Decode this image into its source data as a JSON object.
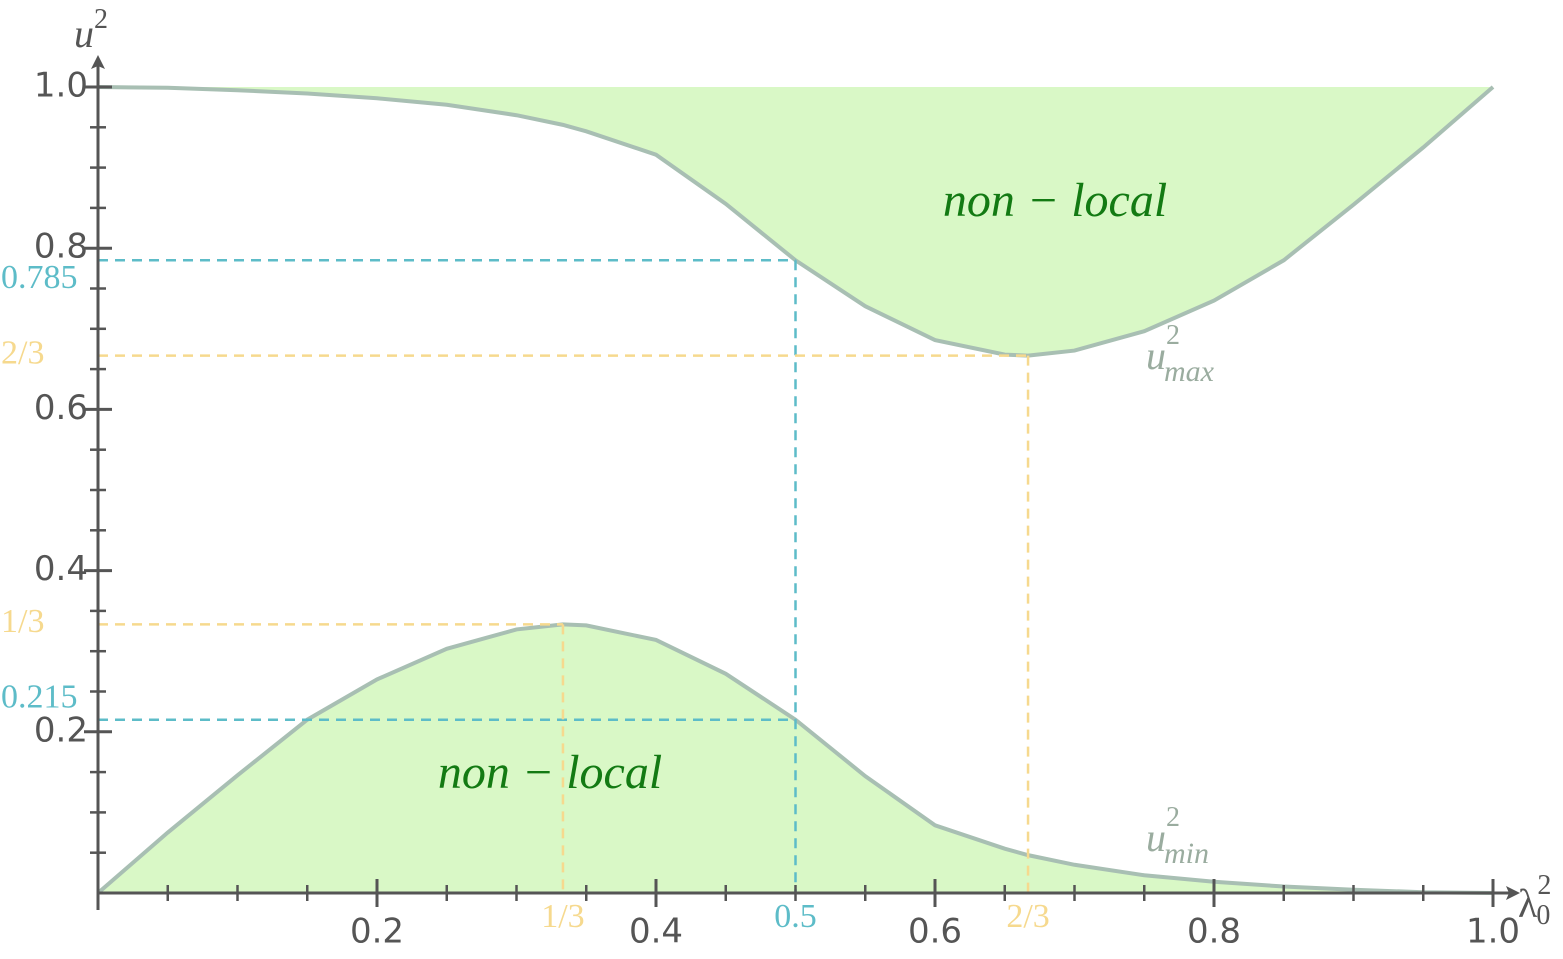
{
  "chart_data": {
    "type": "line",
    "xlabel": {
      "base": "λ",
      "sup": "2",
      "sub": "0"
    },
    "ylabel": {
      "base": "u",
      "sup": "2"
    },
    "x": [
      0,
      0.05,
      0.1,
      0.15,
      0.2,
      0.25,
      0.3,
      0.3333,
      0.35,
      0.4,
      0.45,
      0.5,
      0.55,
      0.6,
      0.65,
      0.6667,
      0.7,
      0.75,
      0.8,
      0.85,
      0.9,
      0.95,
      1
    ],
    "series": [
      {
        "label": {
          "base": "u",
          "sup": "2",
          "sub": "max"
        },
        "color": "#a8bfb3",
        "fill": "#d9f8c6",
        "fill_to": 1,
        "values": [
          1,
          0.999,
          0.996,
          0.992,
          0.986,
          0.978,
          0.965,
          0.953,
          0.945,
          0.916,
          0.855,
          0.785,
          0.728,
          0.686,
          0.668,
          0.6667,
          0.673,
          0.697,
          0.735,
          0.785,
          0.854,
          0.925,
          1
        ]
      },
      {
        "label": {
          "base": "u",
          "sup": "2",
          "sub": "min"
        },
        "color": "#a8bfb3",
        "fill": "#d9f8c6",
        "fill_to": 0,
        "values": [
          0,
          0.075,
          0.146,
          0.215,
          0.265,
          0.303,
          0.327,
          0.3333,
          0.332,
          0.314,
          0.272,
          0.215,
          0.145,
          0.084,
          0.055,
          0.047,
          0.035,
          0.022,
          0.014,
          0.008,
          0.004,
          0.001,
          0
        ]
      }
    ],
    "annotations": [
      "non − local",
      "non − local"
    ],
    "guides": [
      {
        "x": {
          "value": 0.5,
          "label": "0.5"
        },
        "y": [
          {
            "value": 0.785,
            "label": "0.785"
          },
          {
            "value": 0.215,
            "label": "0.215"
          }
        ],
        "color": "#5dbcc8"
      },
      {
        "x": {
          "value": 0.3333,
          "label": "1/3"
        },
        "y": [
          {
            "value": 0.3333,
            "label": "1/3"
          }
        ],
        "color": "#f6d98e"
      },
      {
        "x": {
          "value": 0.6667,
          "label": "2/3"
        },
        "y": [
          {
            "value": 0.6667,
            "label": "2/3"
          }
        ],
        "color": "#f6d98e"
      }
    ],
    "xlim": [
      0,
      1
    ],
    "ylim": [
      0,
      1
    ],
    "xticks": [
      0.2,
      0.4,
      0.6,
      0.8,
      {
        "value": 1,
        "label": "1.0"
      }
    ],
    "yticks": [
      0.2,
      0.4,
      0.6,
      0.8,
      {
        "value": 1,
        "label": "1.0"
      }
    ]
  }
}
